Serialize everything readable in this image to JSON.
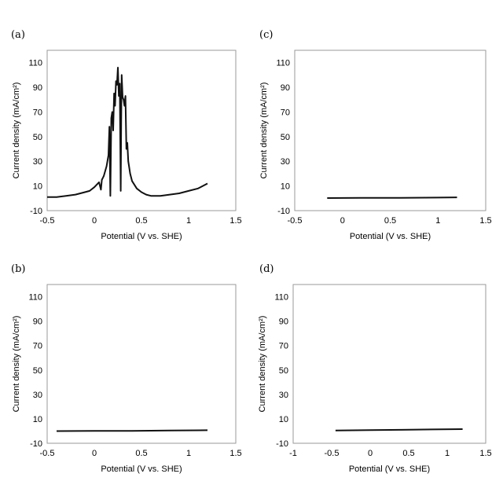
{
  "chart_data": [
    {
      "panel": "(a)",
      "type": "line",
      "xlabel": "Potential (V vs. SHE)",
      "ylabel": "Current density (mA/cm²)",
      "xlim": [
        -0.5,
        1.5
      ],
      "ylim": [
        -10,
        120
      ],
      "x_ticks": [
        "-0.5",
        "0",
        "0.5",
        "1",
        "1.5"
      ],
      "y_ticks": [
        "-10",
        "10",
        "30",
        "50",
        "70",
        "90",
        "110"
      ],
      "grid": false,
      "series": [
        {
          "x": [
            -0.5,
            -0.4,
            -0.3,
            -0.2,
            -0.1,
            -0.05,
            0.0,
            0.05,
            0.07,
            0.08,
            0.1,
            0.13,
            0.15,
            0.16,
            0.17,
            0.18,
            0.19,
            0.2,
            0.21,
            0.22,
            0.23,
            0.24,
            0.25,
            0.26,
            0.27,
            0.28,
            0.285,
            0.29,
            0.3,
            0.31,
            0.32,
            0.33,
            0.34,
            0.35,
            0.36,
            0.38,
            0.4,
            0.45,
            0.5,
            0.55,
            0.6,
            0.65,
            0.7,
            0.8,
            0.9,
            1.0,
            1.1,
            1.2
          ],
          "y": [
            1,
            1,
            2,
            3,
            5,
            6,
            9,
            13,
            7,
            15,
            18,
            26,
            35,
            58,
            2,
            65,
            70,
            55,
            85,
            75,
            95,
            92,
            106,
            83,
            93,
            6,
            62,
            100,
            82,
            80,
            75,
            83,
            40,
            45,
            30,
            20,
            14,
            8,
            5,
            3,
            2,
            2,
            2,
            3,
            4,
            6,
            8,
            12
          ]
        }
      ]
    },
    {
      "panel": "(c)",
      "type": "line",
      "xlabel": "Potential (V vs. SHE)",
      "ylabel": "Current density (mA/cm²)",
      "xlim": [
        -0.5,
        1.5
      ],
      "ylim": [
        -10,
        120
      ],
      "x_ticks": [
        "-0.5",
        "0",
        "0.5",
        "1",
        "1.5"
      ],
      "y_ticks": [
        "-10",
        "10",
        "30",
        "50",
        "70",
        "90",
        "110"
      ],
      "grid": false,
      "series": [
        {
          "x": [
            -0.16,
            0.2,
            0.6,
            1.0,
            1.2
          ],
          "y": [
            0.2,
            0.3,
            0.4,
            0.6,
            0.8
          ]
        }
      ]
    },
    {
      "panel": "(b)",
      "type": "line",
      "xlabel": "Potential (V vs. SHE)",
      "ylabel": "Current density (mA/cm²)",
      "xlim": [
        -0.5,
        1.5
      ],
      "ylim": [
        -10,
        120
      ],
      "x_ticks": [
        "-0.5",
        "0",
        "0.5",
        "1",
        "1.5"
      ],
      "y_ticks": [
        "-10",
        "10",
        "30",
        "50",
        "70",
        "90",
        "110"
      ],
      "grid": false,
      "series": [
        {
          "x": [
            -0.4,
            0.0,
            0.4,
            0.8,
            1.2
          ],
          "y": [
            0.0,
            0.1,
            0.2,
            0.4,
            0.7
          ]
        }
      ]
    },
    {
      "panel": "(d)",
      "type": "line",
      "xlabel": "Potential (V vs. SHE)",
      "ylabel": "Current density (mA/cm²)",
      "xlim": [
        -1,
        1.5
      ],
      "ylim": [
        -10,
        120
      ],
      "x_ticks": [
        "-1",
        "-0.5",
        "0",
        "0.5",
        "1",
        "1.5"
      ],
      "y_ticks": [
        "-10",
        "10",
        "30",
        "50",
        "70",
        "90",
        "110"
      ],
      "grid": false,
      "series": [
        {
          "x": [
            -0.45,
            0.0,
            0.4,
            0.8,
            1.2
          ],
          "y": [
            0.5,
            0.8,
            1.0,
            1.3,
            1.6
          ]
        }
      ]
    }
  ]
}
